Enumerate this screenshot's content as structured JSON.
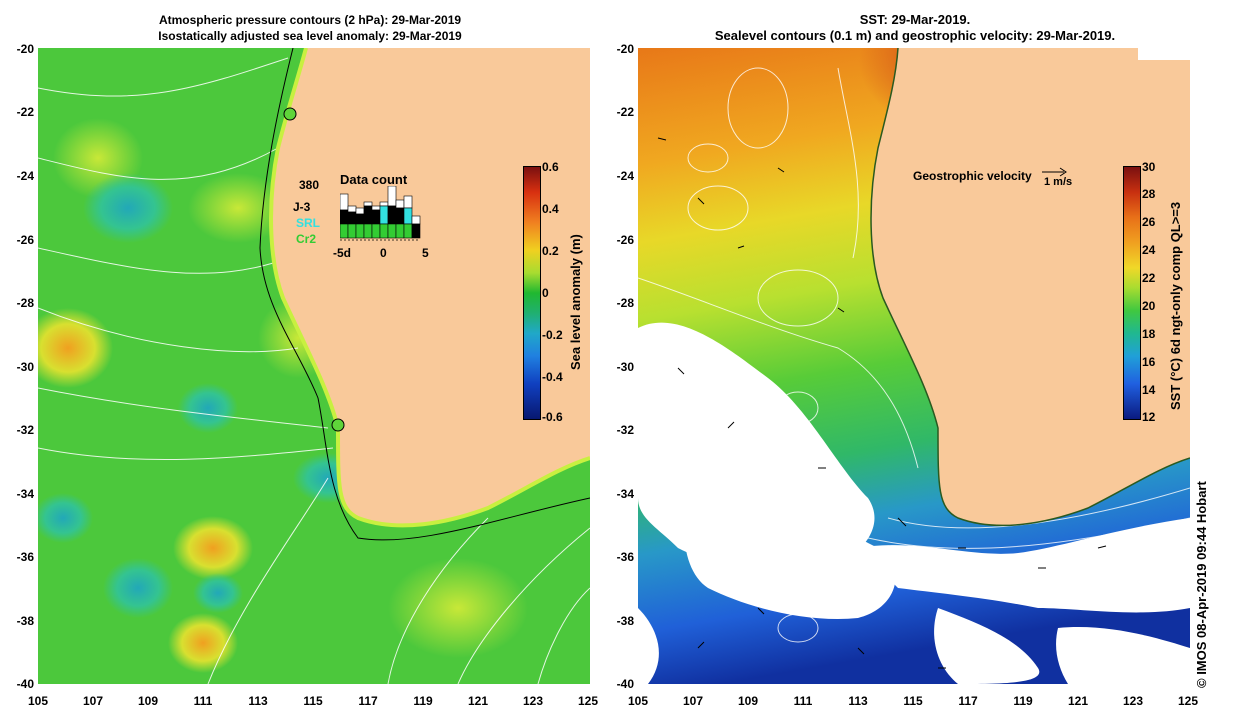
{
  "left_panel": {
    "title_line1": "Atmospheric pressure contours (2 hPa): 29-Mar-2019",
    "title_line2": "Isostatically adjusted sea level anomaly: 29-Mar-2019",
    "colorbar_label": "Sea level anomaly (m)",
    "colorbar_ticks": [
      "0.6",
      "0.4",
      "0.2",
      "0",
      "-0.2",
      "-0.4",
      "-0.6"
    ],
    "inset": {
      "title": "Data count",
      "total": "380",
      "missions": [
        {
          "name": "J-3",
          "color": "#000000"
        },
        {
          "name": "SRL",
          "color": "#33e0e0"
        },
        {
          "name": "Cr2",
          "color": "#33cc33"
        }
      ],
      "x_ticks": [
        "-5d",
        "0",
        "5"
      ]
    }
  },
  "right_panel": {
    "title_line1": "SST: 29-Mar-2019.",
    "title_line2": "Sealevel contours (0.1 m) and geostrophic velocity: 29-Mar-2019.",
    "velocity_legend": "Geostrophic velocity",
    "velocity_scale": "1 m/s",
    "colorbar_label": "SST (°C) 6d ngt-only comp QL>=3",
    "colorbar_ticks": [
      "30",
      "28",
      "26",
      "24",
      "22",
      "20",
      "18",
      "16",
      "14",
      "12"
    ]
  },
  "axes": {
    "y_ticks": [
      "-20",
      "-22",
      "-24",
      "-26",
      "-28",
      "-30",
      "-32",
      "-34",
      "-36",
      "-38",
      "-40"
    ],
    "x_ticks": [
      "105",
      "107",
      "109",
      "111",
      "113",
      "115",
      "117",
      "119",
      "121",
      "123",
      "125"
    ]
  },
  "credit": "© IMOS 08-Apr-2019 09:44 Hobart",
  "colors": {
    "land": "#f9c99a",
    "ocean_green": "#5fd43a",
    "coast_line": "#000000"
  }
}
